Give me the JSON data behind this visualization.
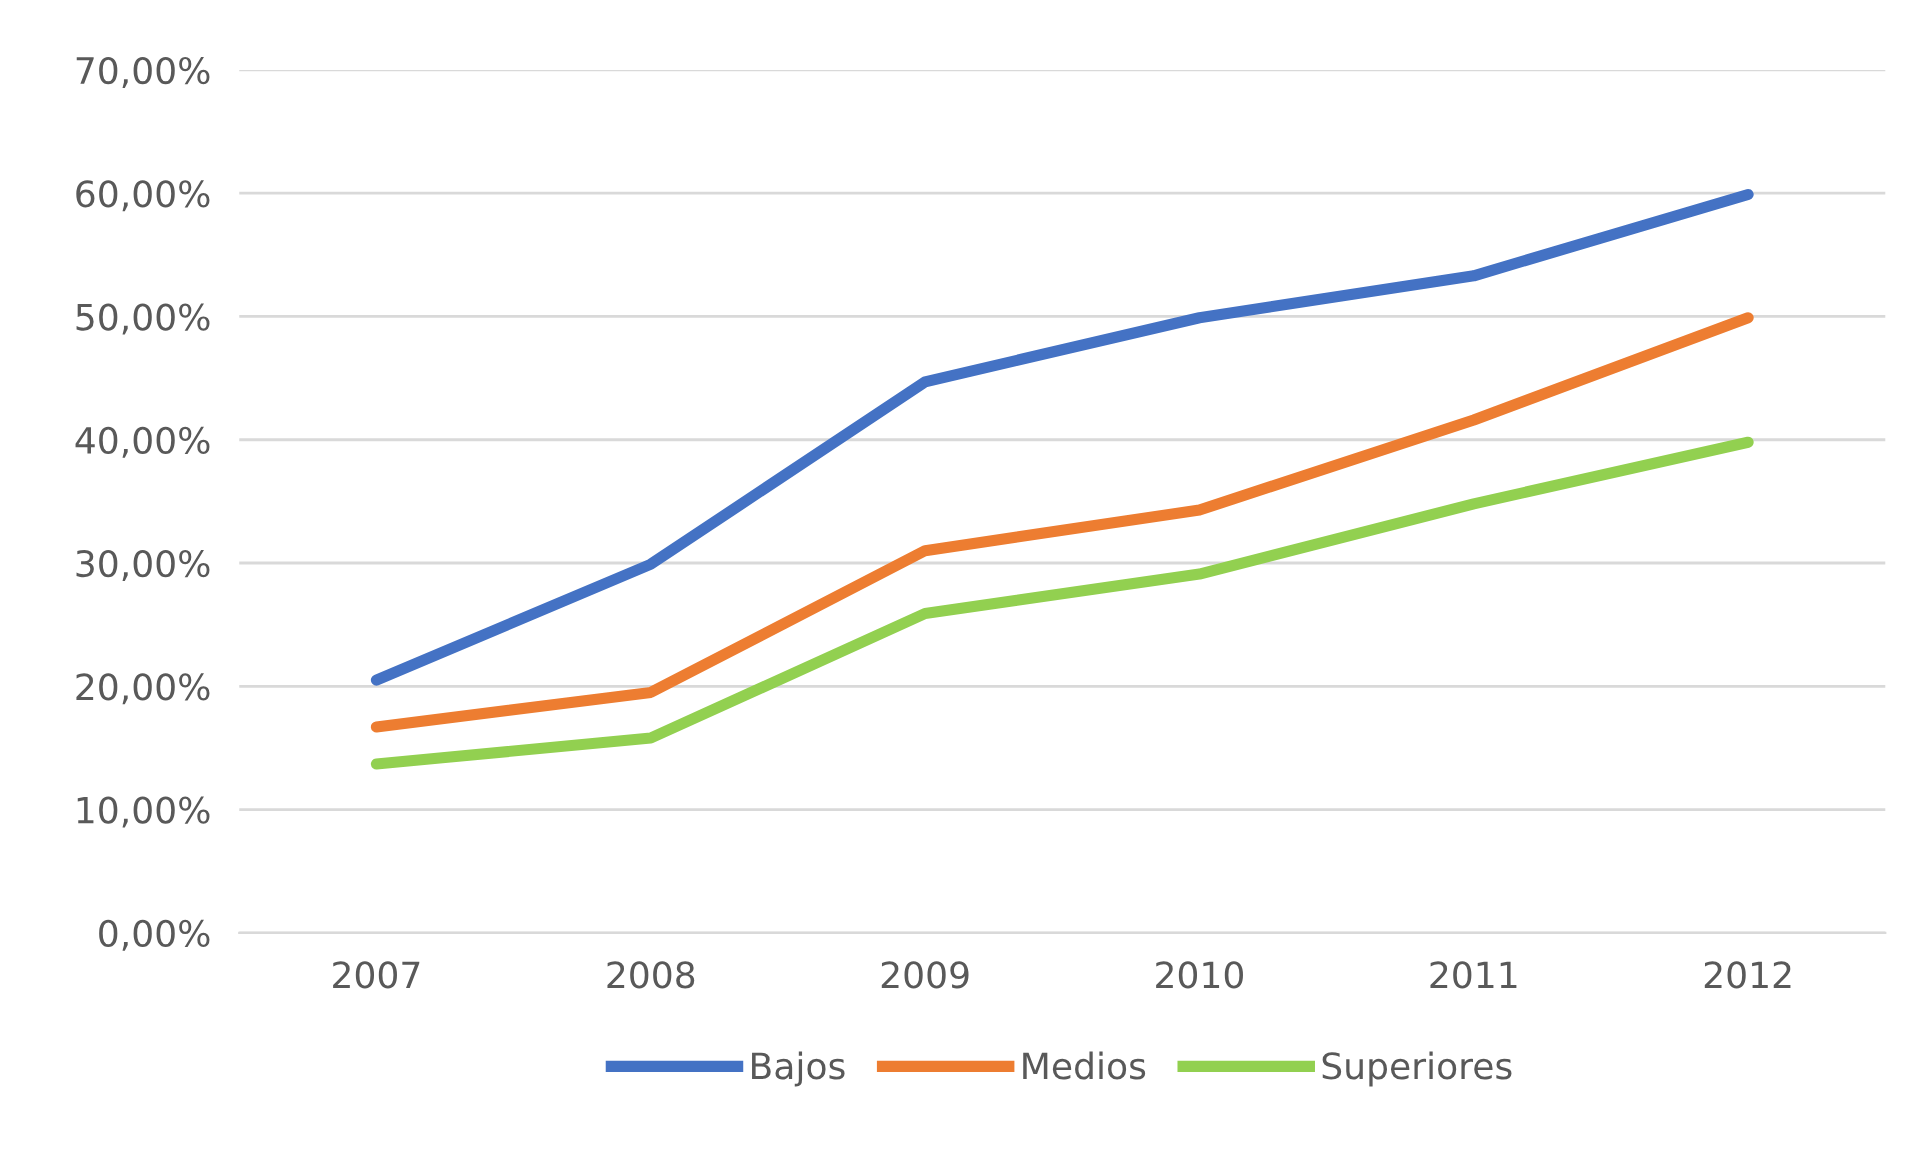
{
  "chart_data": {
    "type": "line",
    "categories": [
      "2007",
      "2008",
      "2009",
      "2010",
      "2011",
      "2012"
    ],
    "series": [
      {
        "name": "Bajos",
        "color": "#4472c4",
        "values": [
          20.5,
          29.9,
          44.7,
          49.9,
          53.3,
          59.9
        ]
      },
      {
        "name": "Medios",
        "color": "#ed7d31",
        "values": [
          16.7,
          19.5,
          31.0,
          34.3,
          41.6,
          49.9
        ]
      },
      {
        "name": "Superiores",
        "color": "#92d050",
        "values": [
          13.7,
          15.8,
          25.9,
          29.1,
          34.8,
          39.8
        ]
      }
    ],
    "ylim": [
      0,
      70
    ],
    "yticks": [
      {
        "value": 0,
        "label": "0,00%"
      },
      {
        "value": 10,
        "label": "10,00%"
      },
      {
        "value": 20,
        "label": "20,00%"
      },
      {
        "value": 30,
        "label": "30,00%"
      },
      {
        "value": 40,
        "label": "40,00%"
      },
      {
        "value": 50,
        "label": "50,00%"
      },
      {
        "value": 60,
        "label": "60,00%"
      },
      {
        "value": 70,
        "label": "70,00%"
      }
    ],
    "grid": "y",
    "legend": "bottom",
    "marker": "none",
    "line_style": "solid"
  }
}
